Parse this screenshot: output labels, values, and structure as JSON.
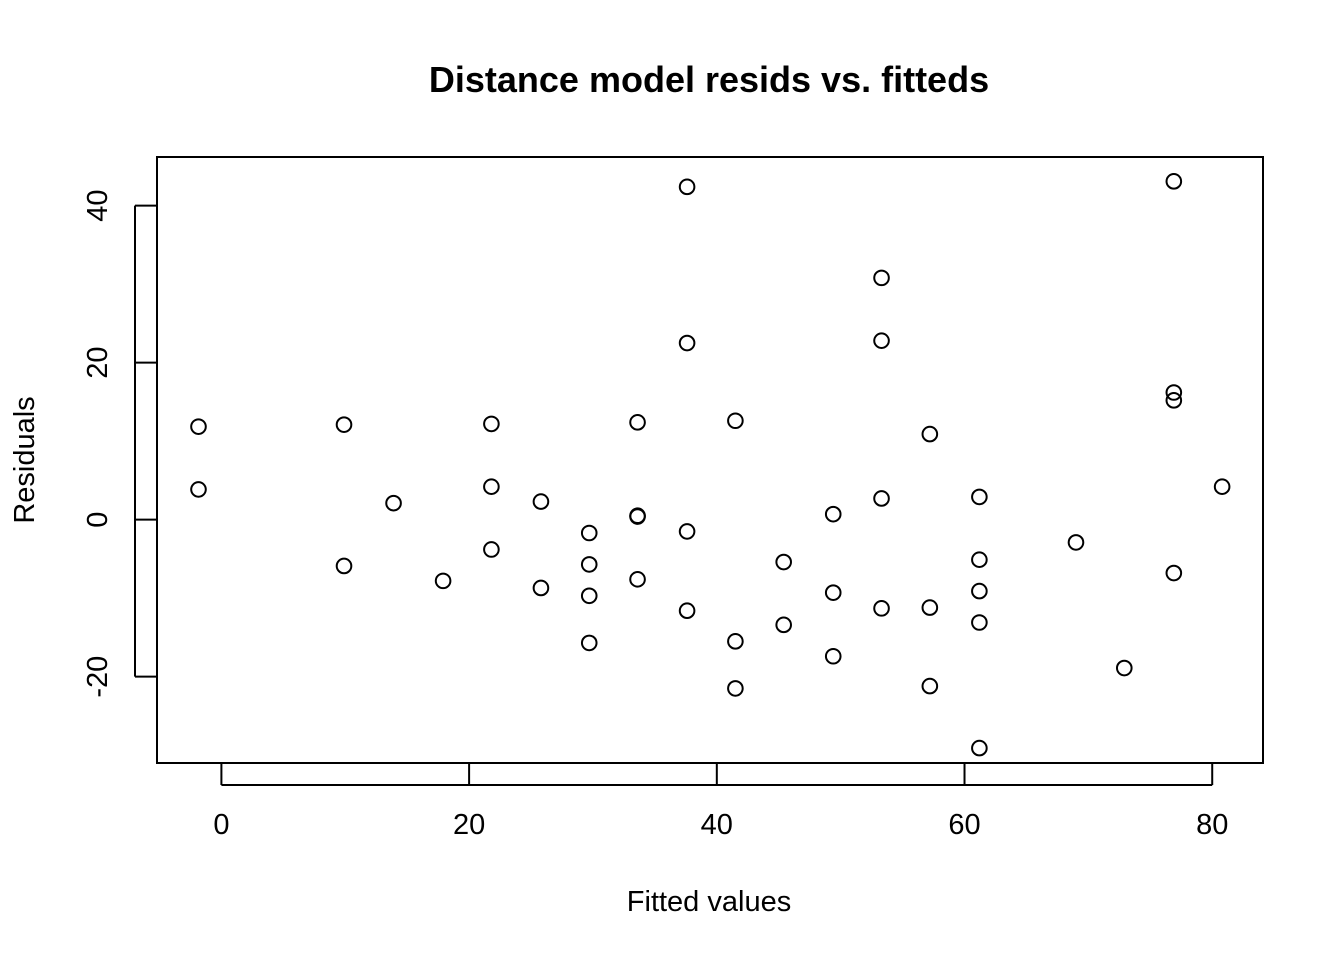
{
  "chart_data": {
    "type": "scatter",
    "title": "Distance model resids vs. fitteds",
    "xlabel": "Fitted values",
    "ylabel": "Residuals",
    "xlim": [
      -5.2,
      84.1
    ],
    "ylim": [
      -31.0,
      46.2
    ],
    "xticks": [
      0,
      20,
      40,
      60,
      80
    ],
    "xtick_labels": [
      "0",
      "20",
      "40",
      "60",
      "80"
    ],
    "yticks": [
      -20,
      0,
      20,
      40
    ],
    "ytick_labels": [
      "-20",
      "0",
      "20",
      "40"
    ],
    "grid": false,
    "legend": "none",
    "marker": "open-circle",
    "points": [
      {
        "x": -1.85,
        "y": 11.85
      },
      {
        "x": -1.85,
        "y": 3.85
      },
      {
        "x": 9.9,
        "y": 12.1
      },
      {
        "x": 9.9,
        "y": -5.9
      },
      {
        "x": 13.9,
        "y": 2.1
      },
      {
        "x": 17.9,
        "y": -7.8
      },
      {
        "x": 21.8,
        "y": 12.2
      },
      {
        "x": 21.8,
        "y": 4.2
      },
      {
        "x": 21.8,
        "y": -3.8
      },
      {
        "x": 25.8,
        "y": 2.3
      },
      {
        "x": 25.8,
        "y": -8.7
      },
      {
        "x": 29.7,
        "y": -1.7
      },
      {
        "x": 29.7,
        "y": -5.7
      },
      {
        "x": 29.7,
        "y": -9.7
      },
      {
        "x": 29.7,
        "y": -15.7
      },
      {
        "x": 33.6,
        "y": 12.4
      },
      {
        "x": 33.6,
        "y": 0.4
      },
      {
        "x": 33.6,
        "y": 0.5
      },
      {
        "x": 33.6,
        "y": -7.6
      },
      {
        "x": 37.6,
        "y": 42.4
      },
      {
        "x": 37.6,
        "y": 22.5
      },
      {
        "x": 37.6,
        "y": -1.5
      },
      {
        "x": 37.6,
        "y": -11.6
      },
      {
        "x": 41.5,
        "y": 12.6
      },
      {
        "x": 41.5,
        "y": -15.5
      },
      {
        "x": 41.5,
        "y": -21.5
      },
      {
        "x": 45.4,
        "y": -5.4
      },
      {
        "x": 45.4,
        "y": -13.4
      },
      {
        "x": 49.4,
        "y": 0.7
      },
      {
        "x": 49.4,
        "y": -9.3
      },
      {
        "x": 49.4,
        "y": -17.4
      },
      {
        "x": 53.3,
        "y": 30.8
      },
      {
        "x": 53.3,
        "y": 22.8
      },
      {
        "x": 53.3,
        "y": 2.7
      },
      {
        "x": 53.3,
        "y": -11.3
      },
      {
        "x": 57.2,
        "y": 10.9
      },
      {
        "x": 57.2,
        "y": -11.2
      },
      {
        "x": 57.2,
        "y": -21.2
      },
      {
        "x": 61.2,
        "y": 2.9
      },
      {
        "x": 61.2,
        "y": -5.1
      },
      {
        "x": 61.2,
        "y": -9.1
      },
      {
        "x": 61.2,
        "y": -13.1
      },
      {
        "x": 61.2,
        "y": -29.1
      },
      {
        "x": 69.0,
        "y": -2.9
      },
      {
        "x": 72.9,
        "y": -18.9
      },
      {
        "x": 76.9,
        "y": 43.1
      },
      {
        "x": 76.9,
        "y": 16.2
      },
      {
        "x": 76.9,
        "y": 15.2
      },
      {
        "x": 76.9,
        "y": -6.8
      },
      {
        "x": 80.8,
        "y": 4.2
      }
    ]
  }
}
